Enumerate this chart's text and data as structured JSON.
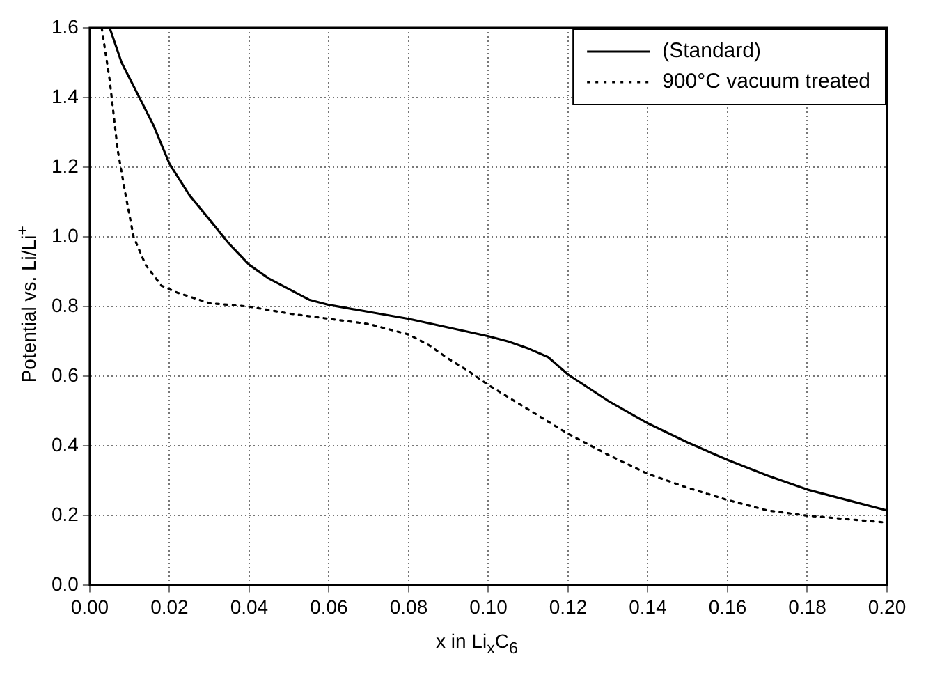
{
  "chart_data": {
    "type": "line",
    "xlabel": "x in Li$_{x}$C$_{6}$",
    "ylabel": "Potential vs. Li/Li$^{+}$",
    "xlim": [
      0,
      0.2
    ],
    "ylim": [
      0,
      1.6
    ],
    "xticks": [
      {
        "value": 0,
        "label": "0.00"
      },
      {
        "value": 0.02,
        "label": "0.02"
      },
      {
        "value": 0.04,
        "label": "0.04"
      },
      {
        "value": 0.06,
        "label": "0.06"
      },
      {
        "value": 0.08,
        "label": "0.08"
      },
      {
        "value": 0.1,
        "label": "0.10"
      },
      {
        "value": 0.12,
        "label": "0.12"
      },
      {
        "value": 0.14,
        "label": "0.14"
      },
      {
        "value": 0.16,
        "label": "0.16"
      },
      {
        "value": 0.18,
        "label": "0.18"
      },
      {
        "value": 0.2,
        "label": "0.20"
      }
    ],
    "yticks": [
      {
        "value": 0,
        "label": "0.0"
      },
      {
        "value": 0.2,
        "label": "0.2"
      },
      {
        "value": 0.4,
        "label": "0.4"
      },
      {
        "value": 0.6,
        "label": "0.6"
      },
      {
        "value": 0.8,
        "label": "0.8"
      },
      {
        "value": 1,
        "label": "1.0"
      },
      {
        "value": 1.2,
        "label": "1.2"
      },
      {
        "value": 1.4,
        "label": "1.4"
      },
      {
        "value": 1.6,
        "label": "1.6"
      }
    ],
    "grid": true,
    "legend": "top right",
    "marker": "none",
    "series": [
      {
        "name": "(Standard)",
        "color": "#000000",
        "line_style": "solid",
        "x": [
          0.005,
          0.008,
          0.012,
          0.016,
          0.02,
          0.025,
          0.03,
          0.035,
          0.04,
          0.045,
          0.05,
          0.055,
          0.06,
          0.07,
          0.08,
          0.09,
          0.1,
          0.105,
          0.11,
          0.115,
          0.12,
          0.13,
          0.14,
          0.15,
          0.16,
          0.17,
          0.18,
          0.19,
          0.2
        ],
        "values": [
          1.6,
          1.5,
          1.41,
          1.32,
          1.21,
          1.12,
          1.05,
          0.98,
          0.92,
          0.88,
          0.85,
          0.82,
          0.805,
          0.785,
          0.765,
          0.74,
          0.715,
          0.7,
          0.68,
          0.655,
          0.605,
          0.53,
          0.465,
          0.41,
          0.36,
          0.315,
          0.275,
          0.245,
          0.215
        ]
      },
      {
        "name": "900°C vacuum treated",
        "color": "#000000",
        "line_style": "dotted",
        "x": [
          0.003,
          0.005,
          0.007,
          0.009,
          0.011,
          0.014,
          0.018,
          0.022,
          0.03,
          0.04,
          0.05,
          0.06,
          0.07,
          0.08,
          0.085,
          0.09,
          0.095,
          0.1,
          0.11,
          0.12,
          0.13,
          0.14,
          0.15,
          0.16,
          0.17,
          0.18,
          0.19,
          0.2
        ],
        "values": [
          1.6,
          1.45,
          1.25,
          1.12,
          1.0,
          0.92,
          0.86,
          0.84,
          0.81,
          0.8,
          0.78,
          0.765,
          0.75,
          0.72,
          0.69,
          0.65,
          0.615,
          0.575,
          0.505,
          0.435,
          0.375,
          0.32,
          0.28,
          0.245,
          0.215,
          0.2,
          0.19,
          0.18
        ]
      }
    ]
  }
}
